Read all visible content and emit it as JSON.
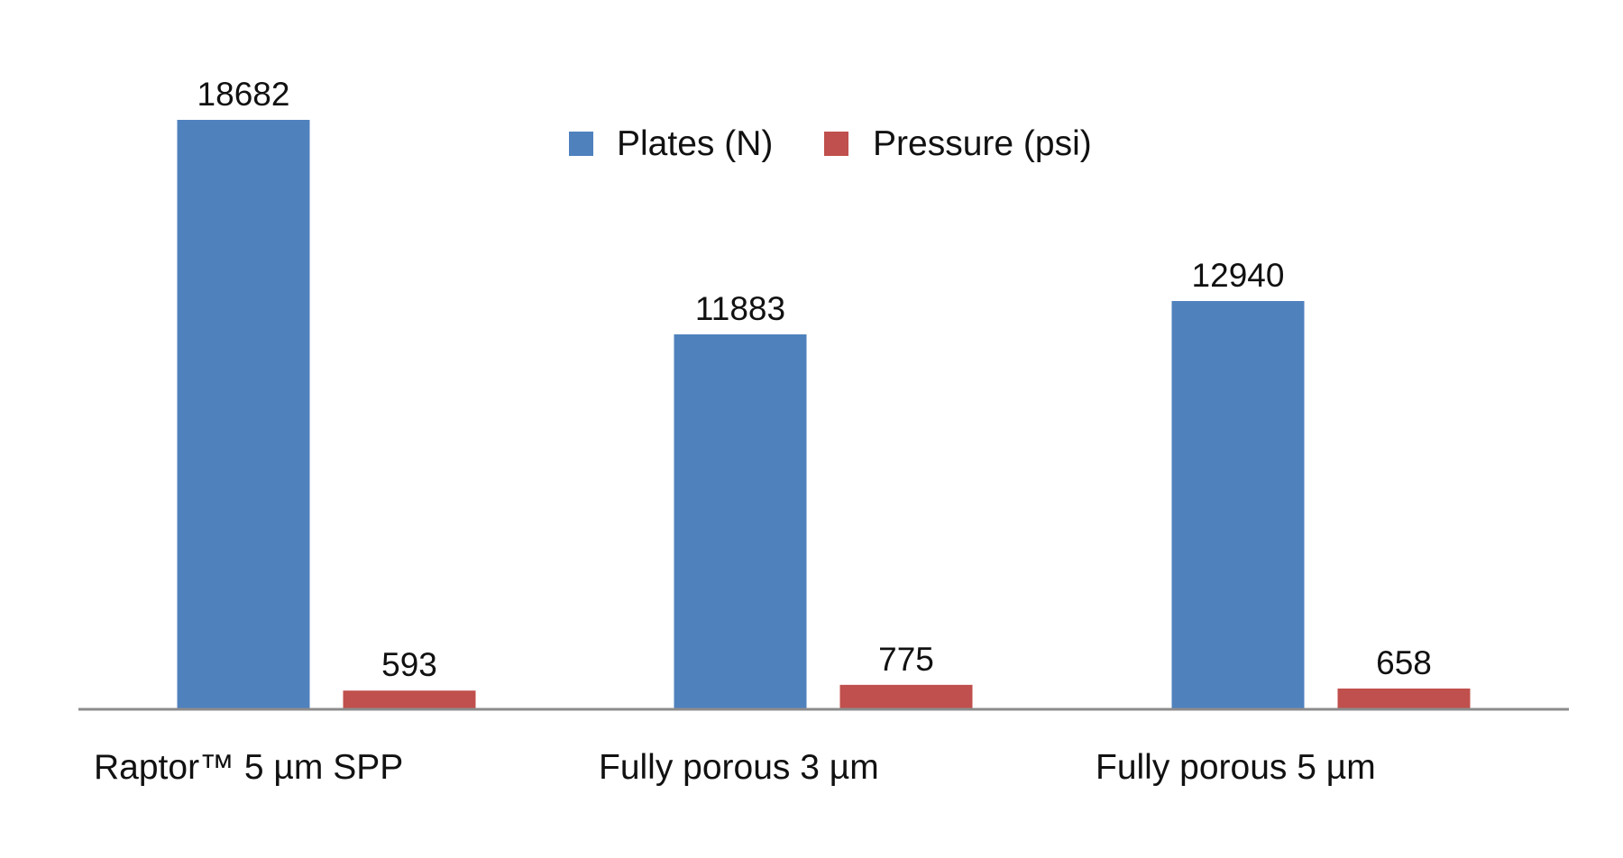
{
  "chart_data": {
    "type": "bar",
    "title": "",
    "xlabel": "",
    "ylabel": "",
    "categories": [
      "Raptor™ 5 µm SPP",
      "Fully porous 3 µm",
      "Fully porous 5 µm"
    ],
    "series": [
      {
        "name": "Plates (N)",
        "values": [
          18682,
          11883,
          12940
        ],
        "color": "#4F81BD"
      },
      {
        "name": "Pressure (psi)",
        "values": [
          593,
          775,
          658
        ],
        "color": "#C0504D"
      }
    ],
    "ylim": [
      0,
      22000
    ],
    "grid": false,
    "legend_position": "top-center",
    "axis_color": "#8C8C8C"
  }
}
